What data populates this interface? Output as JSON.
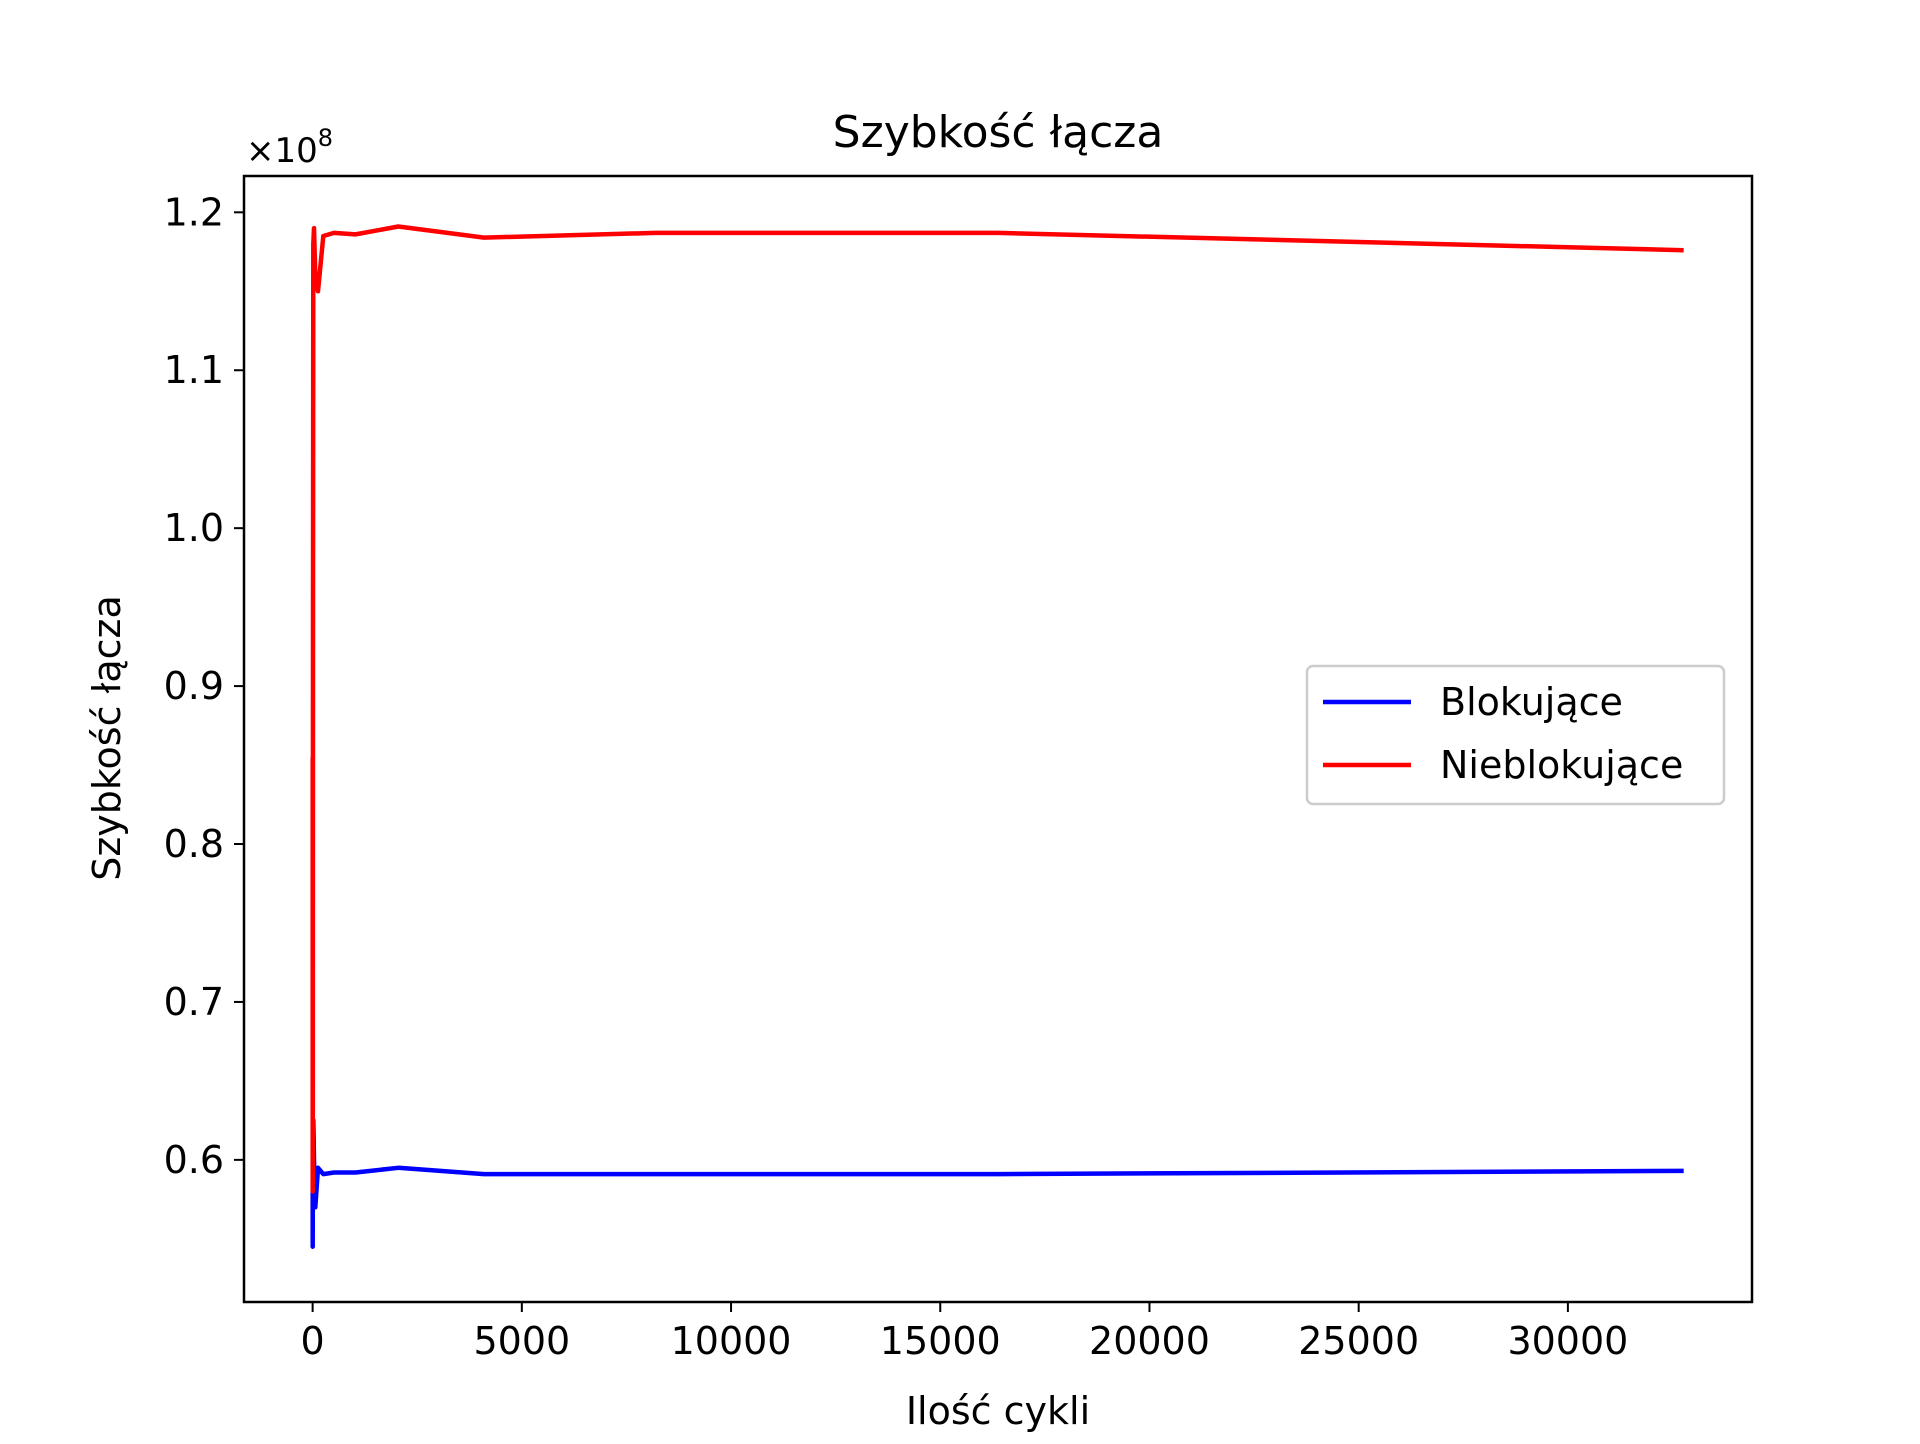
{
  "chart_data": {
    "type": "line",
    "title": "Szybkość łącza",
    "xlabel": "Ilość cykli",
    "ylabel": "Szybkość łącza",
    "y_multiplier_label": "×10",
    "y_multiplier_exponent": "8",
    "xlim": [
      -1640,
      34400
    ],
    "ylim": [
      0.51,
      1.223
    ],
    "xticks": [
      0,
      5000,
      10000,
      15000,
      20000,
      25000,
      30000
    ],
    "yticks": [
      0.6,
      0.7,
      0.8,
      0.9,
      1.0,
      1.1,
      1.2
    ],
    "ytick_labels": [
      "0.6",
      "0.7",
      "0.8",
      "0.9",
      "1.0",
      "1.1",
      "1.2"
    ],
    "grid": false,
    "legend_position": "center-right",
    "series": [
      {
        "name": "Blokujące",
        "color": "#0000ff",
        "x": [
          1,
          2,
          4,
          8,
          16,
          32,
          64,
          128,
          256,
          512,
          1024,
          2048,
          4096,
          8192,
          16384,
          32768
        ],
        "y": [
          0.58,
          0.545,
          0.575,
          0.61,
          0.625,
          0.6,
          0.57,
          0.595,
          0.591,
          0.592,
          0.592,
          0.595,
          0.591,
          0.591,
          0.591,
          0.593
        ]
      },
      {
        "name": "Nieblokujące",
        "color": "#ff0000",
        "x": [
          1,
          2,
          4,
          8,
          16,
          32,
          64,
          128,
          256,
          512,
          1024,
          2048,
          4096,
          8192,
          16384,
          32768
        ],
        "y": [
          0.855,
          0.58,
          0.62,
          0.95,
          1.18,
          1.19,
          1.16,
          1.15,
          1.185,
          1.187,
          1.186,
          1.191,
          1.184,
          1.187,
          1.187,
          1.176
        ]
      }
    ]
  }
}
